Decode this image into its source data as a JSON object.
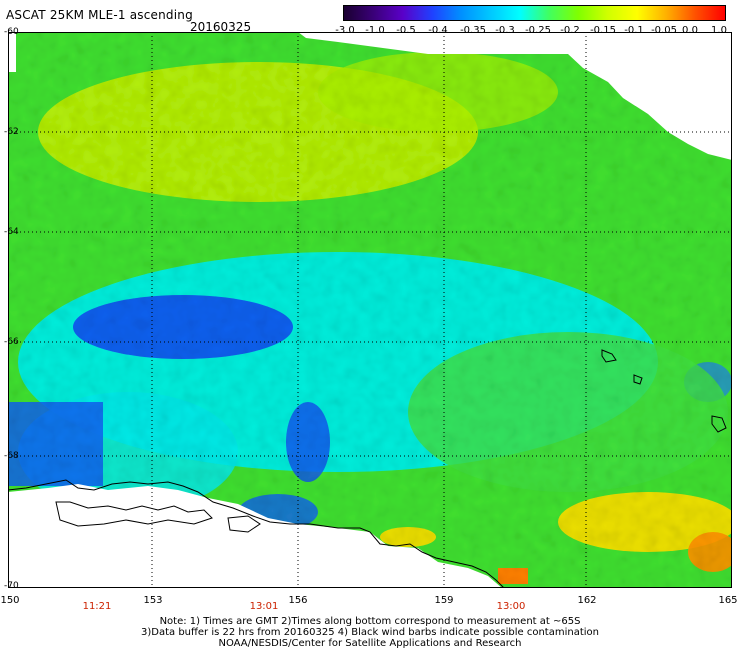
{
  "title": "ASCAT 25KM MLE-1 ascending",
  "date": "20160325",
  "colorbar": {
    "labels": [
      "-3.0",
      "-1.0",
      "-0.5",
      "-0.4",
      "-0.35",
      "-0.3",
      "-0.25",
      "-0.2",
      "-0.15",
      "-0.1",
      "-0.05",
      "0.0",
      "1.0"
    ],
    "colors": [
      "#1a0030",
      "#3a0078",
      "#5a00c8",
      "#2040ff",
      "#0090ff",
      "#00c8ff",
      "#00ffff",
      "#40ff60",
      "#80ff00",
      "#d0ff00",
      "#ffff00",
      "#ffb000",
      "#ff5000",
      "#ff0000"
    ]
  },
  "map": {
    "lat_labels": [
      "-60",
      "-62",
      "-64",
      "-66",
      "-68",
      "-70"
    ],
    "lon_labels": [
      "150",
      "153",
      "156",
      "159",
      "162",
      "165"
    ],
    "pass_times": [
      "11:21",
      "13:01",
      "13:00"
    ],
    "colors": {
      "yellow_green": "#c8f000",
      "green": "#40e030",
      "cyan": "#00f0f0",
      "blue": "#1050f0",
      "yellow": "#ffe000",
      "orange": "#ff8000",
      "coast": "#000000"
    }
  },
  "notes": {
    "line1": "Note: 1) Times are GMT 2)Times along bottom correspond to measurement at ~65S",
    "line2": "3)Data buffer is 22 hrs from 20160325 4) Black wind barbs indicate possible contamination",
    "line3": "NOAA/NESDIS/Center for Satellite Applications and Research"
  }
}
